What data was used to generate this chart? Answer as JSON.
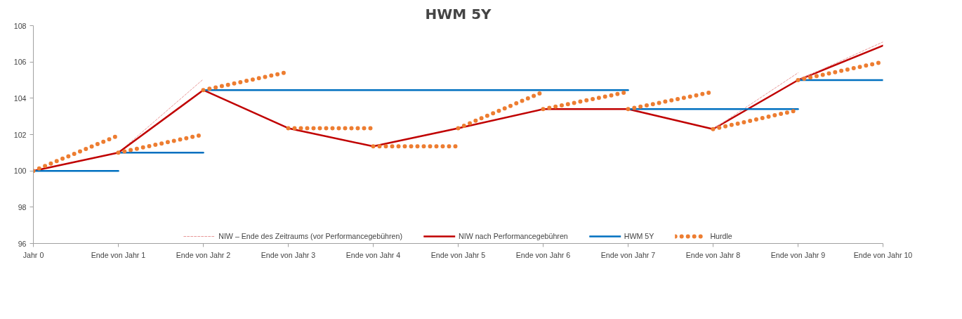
{
  "chart_data": {
    "type": "line",
    "title": "HWM 5Y",
    "categories": [
      "Jahr 0",
      "Ende von Jahr 1",
      "Ende von Jahr 2",
      "Ende von Jahr 3",
      "Ende von Jahr 4",
      "Ende von Jahr 5",
      "Ende von Jahr 6",
      "Ende von Jahr 7",
      "Ende von Jahr 8",
      "Ende von Jahr 9",
      "Ende von Jahr 10"
    ],
    "series": [
      {
        "name": "NIW – Ende des Zeitraums (vor Performancegebühren)",
        "color": "#e89a9a",
        "line_style": "dashed",
        "values": [
          null,
          101.0,
          105.05,
          null,
          null,
          null,
          null,
          null,
          null,
          null,
          null
        ]
      },
      {
        "name": "NIW nach Performancegebühren",
        "color": "#c00000",
        "line_style": "solid",
        "values": [
          100,
          101.0,
          104.45,
          102.35,
          101.35,
          102.35,
          103.4,
          103.4,
          102.3,
          105.0,
          106.9
        ]
      },
      {
        "name": "HWM 5Y",
        "color": "#0070c0",
        "line_style": "solid",
        "values": [
          100,
          100,
          null,
          null,
          null,
          null,
          null,
          null,
          null,
          null,
          null
        ]
      },
      {
        "name": "Hurdle",
        "color": "#ed7d31",
        "line_style": "dotted",
        "values": [
          100,
          101.95,
          null,
          null,
          null,
          null,
          null,
          null,
          null,
          null,
          null
        ]
      },
      {
        "color": "#e89a9a",
        "line_style": "dashed",
        "values": [
          null,
          null,
          null,
          null,
          null,
          null,
          null,
          null,
          102.3,
          105.4,
          null
        ]
      },
      {
        "color": "#e89a9a",
        "line_style": "dashed",
        "values": [
          null,
          null,
          null,
          null,
          null,
          null,
          null,
          null,
          null,
          105.0,
          107.1
        ]
      },
      {
        "color": "#0070c0",
        "line_style": "solid",
        "values": [
          null,
          101.0,
          101.0,
          null,
          null,
          null,
          null,
          null,
          null,
          null,
          null
        ]
      },
      {
        "color": "#0070c0",
        "line_style": "solid",
        "values": [
          null,
          null,
          104.45,
          104.45,
          104.45,
          104.45,
          104.45,
          104.45,
          null,
          null,
          null
        ]
      },
      {
        "color": "#0070c0",
        "line_style": "solid",
        "values": [
          null,
          null,
          null,
          null,
          null,
          null,
          null,
          103.4,
          103.4,
          103.4,
          null
        ]
      },
      {
        "color": "#0070c0",
        "line_style": "solid",
        "values": [
          null,
          null,
          null,
          null,
          null,
          null,
          null,
          null,
          null,
          105.0,
          105.0
        ]
      },
      {
        "color": "#ed7d31",
        "line_style": "dotted",
        "values": [
          null,
          101.0,
          102.0,
          null,
          null,
          null,
          null,
          null,
          null,
          null,
          null
        ]
      },
      {
        "color": "#ed7d31",
        "line_style": "dotted",
        "values": [
          null,
          null,
          104.45,
          105.45,
          null,
          null,
          null,
          null,
          null,
          null,
          null
        ]
      },
      {
        "color": "#ed7d31",
        "line_style": "dotted",
        "values": [
          null,
          null,
          null,
          102.35,
          102.35,
          null,
          null,
          null,
          null,
          null,
          null
        ]
      },
      {
        "color": "#ed7d31",
        "line_style": "dotted",
        "values": [
          null,
          null,
          null,
          null,
          101.35,
          101.35,
          null,
          null,
          null,
          null,
          null
        ]
      },
      {
        "color": "#ed7d31",
        "line_style": "dotted",
        "values": [
          null,
          null,
          null,
          null,
          null,
          102.35,
          104.35,
          null,
          null,
          null,
          null
        ]
      },
      {
        "color": "#ed7d31",
        "line_style": "dotted",
        "values": [
          null,
          null,
          null,
          null,
          null,
          null,
          103.4,
          104.35,
          null,
          null,
          null
        ]
      },
      {
        "color": "#ed7d31",
        "line_style": "dotted",
        "values": [
          null,
          null,
          null,
          null,
          null,
          null,
          null,
          103.4,
          104.35,
          null,
          null
        ]
      },
      {
        "color": "#ed7d31",
        "line_style": "dotted",
        "values": [
          null,
          null,
          null,
          null,
          null,
          null,
          null,
          null,
          102.3,
          103.35,
          null
        ]
      },
      {
        "color": "#ed7d31",
        "line_style": "dotted",
        "values": [
          null,
          null,
          null,
          null,
          null,
          null,
          null,
          null,
          null,
          105.0,
          106.0
        ]
      }
    ],
    "ylim": [
      96,
      108
    ],
    "yticks": [
      96,
      98,
      100,
      102,
      104,
      106,
      108
    ],
    "grid": false,
    "legend": "bottom"
  }
}
